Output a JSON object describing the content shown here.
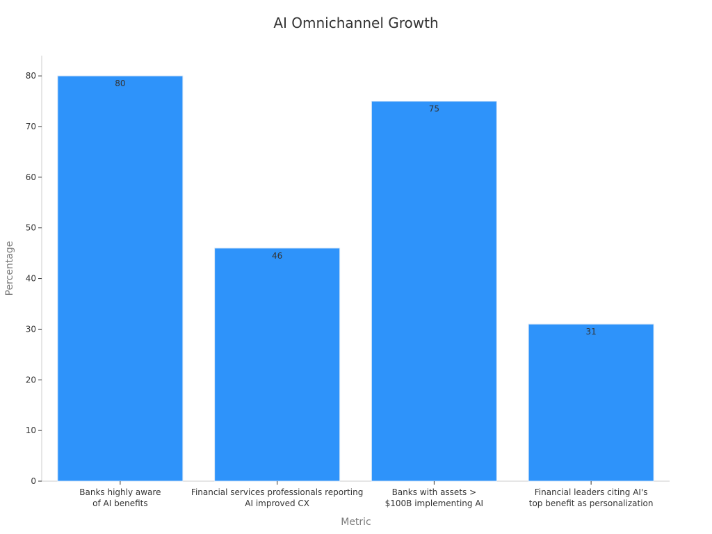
{
  "chart_data": {
    "type": "bar",
    "title": "AI Omnichannel Growth",
    "xlabel": "Metric",
    "ylabel": "Percentage",
    "categories": [
      "Banks highly aware\nof AI benefits",
      "Financial services professionals reporting\nAI improved CX",
      "Banks with assets >\n$100B implementing AI",
      "Financial leaders citing AI's\ntop benefit as personalization"
    ],
    "values": [
      80,
      46,
      75,
      31
    ],
    "ylim": [
      0,
      84
    ],
    "yticks": [
      0,
      10,
      20,
      30,
      40,
      50,
      60,
      70,
      80
    ],
    "grid": false,
    "legend": "none",
    "bar_color": "#2e93fa",
    "bar_edge_color": "#d6e6f7",
    "axis_color": "#cccccc"
  }
}
